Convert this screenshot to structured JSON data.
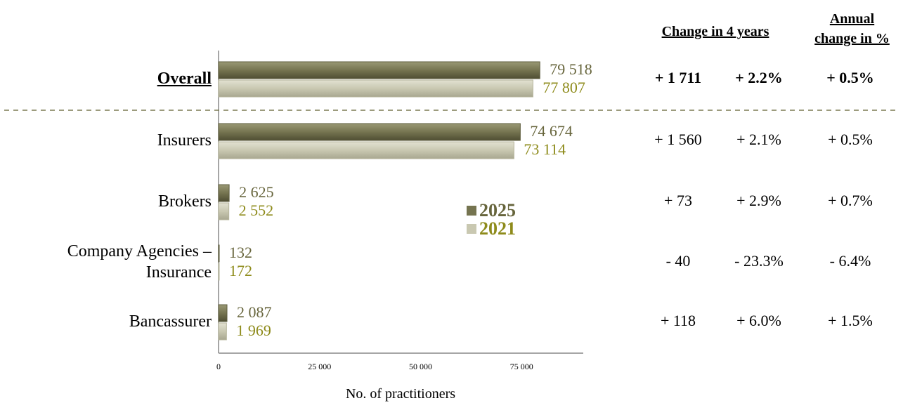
{
  "headers": {
    "change": "Change in 4 years",
    "annual_line1": "Annual",
    "annual_line2": "change in %"
  },
  "colors": {
    "bar_2025": "#757450",
    "bar_2021": "#c9c8b1",
    "label_2025": "#67653c",
    "label_2021": "#8e8b1b",
    "divider": "#7b7a52"
  },
  "rows": [
    {
      "label": [
        "Overall"
      ],
      "bold": true,
      "v2025": "79 518",
      "v2021": "77 807",
      "abs": "+ 1 711",
      "pct": "+ 2.2%",
      "annual": "+ 0.5%"
    },
    {
      "label": [
        "Insurers"
      ],
      "bold": false,
      "v2025": "74 674",
      "v2021": "73 114",
      "abs": "+ 1 560",
      "pct": "+ 2.1%",
      "annual": "+ 0.5%"
    },
    {
      "label": [
        "Brokers"
      ],
      "bold": false,
      "v2025": "2 625",
      "v2021": "2 552",
      "abs": "+ 73",
      "pct": "+ 2.9%",
      "annual": "+ 0.7%"
    },
    {
      "label": [
        "Company Agencies –",
        "Insurance"
      ],
      "bold": false,
      "v2025": "132",
      "v2021": "172",
      "abs": "- 40",
      "pct": "- 23.3%",
      "annual": "- 6.4%"
    },
    {
      "label": [
        "Bancassurer"
      ],
      "bold": false,
      "v2025": "2 087",
      "v2021": "1 969",
      "abs": "+ 118",
      "pct": "+  6.0%",
      "annual": "+  1.5%"
    }
  ],
  "chart_data": {
    "type": "bar",
    "orientation": "horizontal",
    "categories": [
      "Overall",
      "Insurers",
      "Brokers",
      "Company Agencies – Insurance",
      "Bancassurer"
    ],
    "series": [
      {
        "name": "2025",
        "values": [
          79518,
          74674,
          2625,
          132,
          2087
        ]
      },
      {
        "name": "2021",
        "values": [
          77807,
          73114,
          2552,
          172,
          1969
        ]
      }
    ],
    "xlabel": "No. of practitioners",
    "xticks": [
      "0",
      "25 000",
      "50 000",
      "75 000"
    ],
    "xtick_values": [
      0,
      25000,
      50000,
      75000
    ],
    "xlim": [
      0,
      90000
    ],
    "legend": [
      "2025",
      "2021"
    ],
    "legend_position": "inside-center"
  }
}
